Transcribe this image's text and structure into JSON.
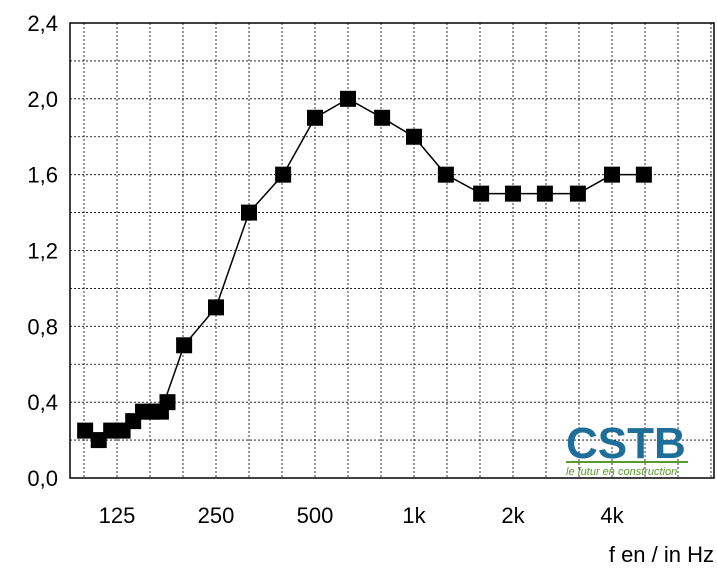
{
  "chart_data": {
    "type": "line",
    "x": [
      100,
      110,
      120,
      130,
      140,
      150,
      160,
      170,
      200,
      250,
      315,
      400,
      500,
      630,
      800,
      1000,
      1250,
      1600,
      2000,
      2500,
      3150,
      4000,
      5000
    ],
    "series": [
      {
        "values": [
          0.25,
          0.2,
          0.25,
          0.25,
          0.3,
          0.35,
          0.35,
          0.35,
          0.7,
          0.9,
          1.4,
          1.6,
          1.9,
          2.0,
          1.9,
          1.8,
          1.6,
          1.5,
          1.5,
          1.5,
          1.5,
          1.6,
          1.6
        ],
        "color": "#000000",
        "marker": "square"
      }
    ],
    "extra_points": [
      [
        178,
        0.4
      ]
    ],
    "x_scale": "log",
    "xlim": [
      90,
      5000
    ],
    "ylim": [
      0,
      2.4
    ],
    "yticks": [
      "0,0",
      "0,4",
      "0,8",
      "1,2",
      "1,6",
      "2,0",
      "2,4"
    ],
    "xticks": [
      "125",
      "250",
      "500",
      "1k",
      "2k",
      "4k"
    ],
    "xtick_values": [
      125,
      250,
      500,
      1000,
      2000,
      4000
    ],
    "xlabel": "f en / in Hz",
    "grid": true,
    "logo": {
      "text": "CSTB",
      "tagline": "le futur en construction",
      "color": "#1f6e9a",
      "tagline_color": "#5a9a2a"
    }
  }
}
